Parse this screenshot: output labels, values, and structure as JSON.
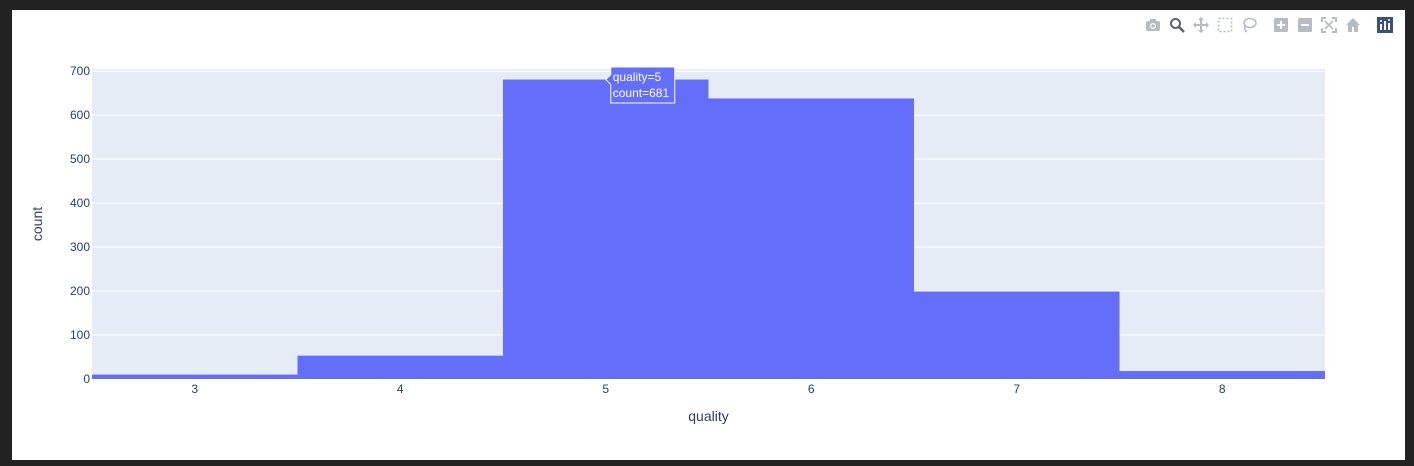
{
  "toolbar": {
    "buttons": [
      {
        "icon": "camera-icon",
        "title": "Download plot as a png"
      },
      {
        "icon": "zoom-icon",
        "title": "Zoom"
      },
      {
        "icon": "pan-icon",
        "title": "Pan"
      },
      {
        "icon": "box-select-icon",
        "title": "Box Select"
      },
      {
        "icon": "lasso-select-icon",
        "title": "Lasso Select"
      },
      {
        "icon": "zoom-in-icon",
        "title": "Zoom in"
      },
      {
        "icon": "zoom-out-icon",
        "title": "Zoom out"
      },
      {
        "icon": "autoscale-icon",
        "title": "Autoscale"
      },
      {
        "icon": "reset-axes-icon",
        "title": "Reset axes"
      },
      {
        "icon": "plotly-logo-icon",
        "title": "Produced with Plotly"
      }
    ]
  },
  "chart_data": {
    "type": "bar",
    "title": "",
    "xlabel": "quality",
    "ylabel": "count",
    "categories": [
      "3",
      "4",
      "5",
      "6",
      "7",
      "8"
    ],
    "values": [
      10,
      53,
      681,
      638,
      199,
      18
    ],
    "ylim": [
      0,
      705
    ],
    "yticks": [
      0,
      100,
      200,
      300,
      400,
      500,
      600,
      700
    ],
    "grid": true,
    "bar_color": "#636efa",
    "plot_bgcolor": "#e5ecf6",
    "tooltip": {
      "index": 2,
      "line1": "quality=5",
      "line2": "count=681"
    }
  }
}
